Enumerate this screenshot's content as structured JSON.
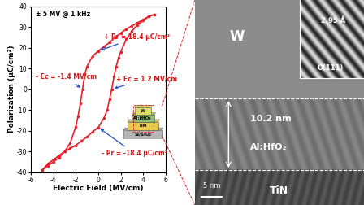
{
  "chart_data": {
    "type": "line",
    "color": "#e8202a",
    "marker": "o",
    "xlabel": "Electric Field (MV/cm)",
    "ylabel": "Polarization (μC/cm²)",
    "xlim": [
      -6,
      6
    ],
    "xticks": [
      -6,
      -4,
      -2,
      0,
      2,
      4,
      6
    ],
    "ylim": [
      -40,
      40
    ],
    "yticks": [
      -40,
      -30,
      -20,
      -10,
      0,
      10,
      20,
      30,
      40
    ],
    "series": [
      {
        "x": [
          5,
          4.5,
          4,
          3.5,
          3,
          2.5,
          2,
          1.5,
          1,
          0.5,
          0,
          -0.5,
          -1,
          -1.2,
          -1.4,
          -1.6,
          -1.8,
          -2,
          -2.5,
          -3,
          -3.5,
          -4,
          -4.5,
          -5
        ],
        "values": [
          36,
          35,
          33.5,
          32,
          30.5,
          29,
          27,
          25,
          22.5,
          20.5,
          18.4,
          16,
          11,
          7,
          0,
          -7,
          -13,
          -18,
          -26,
          -30,
          -33,
          -35,
          -37,
          -39
        ]
      },
      {
        "x": [
          -5,
          -4.5,
          -4,
          -3.5,
          -3,
          -2.5,
          -2,
          -1.5,
          -1,
          -0.5,
          0,
          0.5,
          0.8,
          1,
          1.2,
          1.4,
          1.6,
          1.8,
          2,
          2.5,
          3,
          3.5,
          4,
          4.5,
          5
        ],
        "values": [
          -39,
          -36,
          -34,
          -32,
          -30,
          -28.5,
          -27,
          -25,
          -23,
          -20.5,
          -18.4,
          -14,
          -10,
          -5,
          0,
          6,
          11,
          15,
          18,
          24,
          28,
          31,
          33,
          35,
          36
        ]
      }
    ],
    "note": "± 5 MV @ 1 kHz",
    "annotations": [
      {
        "text": "+ Pr = 18.4 μC/cm²",
        "x": 0,
        "y": 18.4
      },
      {
        "text": "- Pr = -18.4 μC/cm²",
        "x": 0,
        "y": -18.4
      },
      {
        "text": "- Ec = -1.4 MV/cm",
        "x": -1.4,
        "y": 0
      },
      {
        "text": "+ Ec = 1.2 MV/cm",
        "x": 1.2,
        "y": 0
      }
    ],
    "inset_layers": [
      "W",
      "Al:HfO₂",
      "TiN",
      "Si/SiO₂"
    ]
  },
  "tem_image": {
    "top_layer": "W",
    "middle_layer": "Al:HfO₂",
    "bottom_layer": "TiN",
    "thickness_label": "10.2 nm",
    "lattice_spacing": "2.95 Å",
    "plane": "O(111)",
    "scale_bar": "5 nm"
  }
}
